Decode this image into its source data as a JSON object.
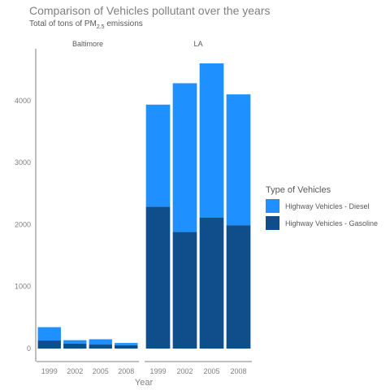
{
  "chart_data": {
    "type": "bar",
    "stacked": true,
    "title": "Comparison of Vehicles pollutant over the years",
    "subtitle_prefix": "Total of tons of PM",
    "subtitle_sub": "2.5",
    "subtitle_suffix": " emissions",
    "xlabel": "Year",
    "ylabel": "",
    "ylim": [
      0,
      4600
    ],
    "yticks": [
      0,
      1000,
      2000,
      3000,
      4000
    ],
    "categories": [
      "1999",
      "2002",
      "2005",
      "2008"
    ],
    "legend_title": "Type of Vehicles",
    "legend_position": "right",
    "grid": false,
    "series": [
      {
        "name": "Highway Vehicles - Diesel",
        "color": "#1E90FF"
      },
      {
        "name": "Highway Vehicles - Gasoline",
        "color": "#104E8B"
      }
    ],
    "panels": [
      {
        "name": "Baltimore",
        "diesel": [
          215,
          55,
          85,
          35
        ],
        "gasoline": [
          130,
          80,
          65,
          55
        ]
      },
      {
        "name": "LA",
        "diesel": [
          1645,
          2400,
          2490,
          2110
        ],
        "gasoline": [
          2290,
          1880,
          2110,
          1990
        ]
      }
    ]
  }
}
